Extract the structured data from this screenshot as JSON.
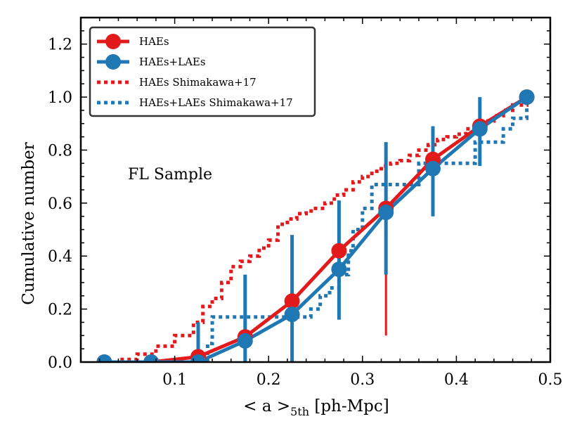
{
  "chart_data": {
    "type": "line",
    "title": "",
    "xlabel": "< a >",
    "xlabel_subscript": "5th",
    "xlabel_suffix": " [ph-Mpc]",
    "ylabel": "Cumulative number",
    "xlim": [
      0.0,
      0.5
    ],
    "ylim": [
      0.0,
      1.3
    ],
    "xticks": [
      0.1,
      0.2,
      0.3,
      0.4,
      0.5
    ],
    "xtick_labels": [
      "0.1",
      "0.2",
      "0.3",
      "0.4",
      "0.5"
    ],
    "yticks": [
      0.0,
      0.2,
      0.4,
      0.6,
      0.8,
      1.0,
      1.2
    ],
    "ytick_labels": [
      "0.0",
      "0.2",
      "0.4",
      "0.6",
      "0.8",
      "1.0",
      "1.2"
    ],
    "grid": false,
    "legend_position": "top-left",
    "annotation": "FL Sample",
    "colors": {
      "red": "#e31a1c",
      "blue": "#1f78b4"
    },
    "series": [
      {
        "name": "HAEs",
        "style": "solid-markers",
        "color": "#e31a1c",
        "x": [
          0.025,
          0.075,
          0.125,
          0.175,
          0.225,
          0.275,
          0.325,
          0.375,
          0.425,
          0.475
        ],
        "y": [
          0.0,
          0.0,
          0.02,
          0.095,
          0.23,
          0.42,
          0.58,
          0.765,
          0.89,
          1.0
        ],
        "yerr_low": [
          0.0,
          0.0,
          0.0,
          0.0,
          0.08,
          0.22,
          0.1,
          0.6,
          0.84,
          1.0
        ],
        "yerr_high": [
          0.0,
          0.0,
          0.1,
          0.22,
          0.44,
          0.52,
          0.75,
          0.82,
          0.88,
          1.0
        ]
      },
      {
        "name": "HAEs+LAEs",
        "style": "solid-markers",
        "color": "#1f78b4",
        "x": [
          0.025,
          0.075,
          0.125,
          0.175,
          0.225,
          0.275,
          0.325,
          0.375,
          0.425,
          0.475
        ],
        "y": [
          0.0,
          0.0,
          0.0,
          0.08,
          0.18,
          0.35,
          0.565,
          0.73,
          0.88,
          1.0
        ],
        "yerr_low": [
          0.0,
          0.0,
          0.0,
          0.0,
          0.0,
          0.16,
          0.33,
          0.55,
          0.74,
          1.0
        ],
        "yerr_high": [
          0.0,
          0.0,
          0.15,
          0.33,
          0.48,
          0.61,
          0.83,
          0.89,
          1.0,
          1.0
        ]
      },
      {
        "name": "HAEs Shimakawa+17",
        "style": "dotted-step",
        "color": "#e31a1c",
        "x": [
          0.03,
          0.04,
          0.06,
          0.08,
          0.1,
          0.12,
          0.13,
          0.14,
          0.15,
          0.16,
          0.17,
          0.18,
          0.19,
          0.2,
          0.21,
          0.22,
          0.23,
          0.24,
          0.25,
          0.26,
          0.27,
          0.28,
          0.29,
          0.3,
          0.31,
          0.32,
          0.33,
          0.34,
          0.35,
          0.36,
          0.37,
          0.38,
          0.39,
          0.4,
          0.41,
          0.42,
          0.43,
          0.44,
          0.45,
          0.46,
          0.475
        ],
        "y": [
          0.0,
          0.01,
          0.03,
          0.06,
          0.1,
          0.15,
          0.21,
          0.24,
          0.3,
          0.36,
          0.38,
          0.4,
          0.43,
          0.46,
          0.52,
          0.54,
          0.56,
          0.57,
          0.58,
          0.6,
          0.63,
          0.65,
          0.68,
          0.7,
          0.72,
          0.74,
          0.75,
          0.76,
          0.78,
          0.8,
          0.82,
          0.84,
          0.85,
          0.86,
          0.88,
          0.9,
          0.91,
          0.93,
          0.95,
          0.97,
          1.0
        ]
      },
      {
        "name": "HAEs+LAEs Shimakawa+17",
        "style": "dotted-step",
        "color": "#1f78b4",
        "x": [
          0.12,
          0.135,
          0.14,
          0.235,
          0.245,
          0.255,
          0.265,
          0.275,
          0.285,
          0.29,
          0.3,
          0.31,
          0.34,
          0.35,
          0.36,
          0.38,
          0.39,
          0.4,
          0.42,
          0.43,
          0.44,
          0.45,
          0.46,
          0.465,
          0.475
        ],
        "y": [
          0.0,
          0.07,
          0.17,
          0.17,
          0.2,
          0.25,
          0.28,
          0.33,
          0.42,
          0.5,
          0.58,
          0.67,
          0.67,
          0.67,
          0.75,
          0.75,
          0.75,
          0.75,
          0.83,
          0.83,
          0.83,
          0.88,
          0.92,
          0.92,
          1.0
        ]
      }
    ]
  }
}
